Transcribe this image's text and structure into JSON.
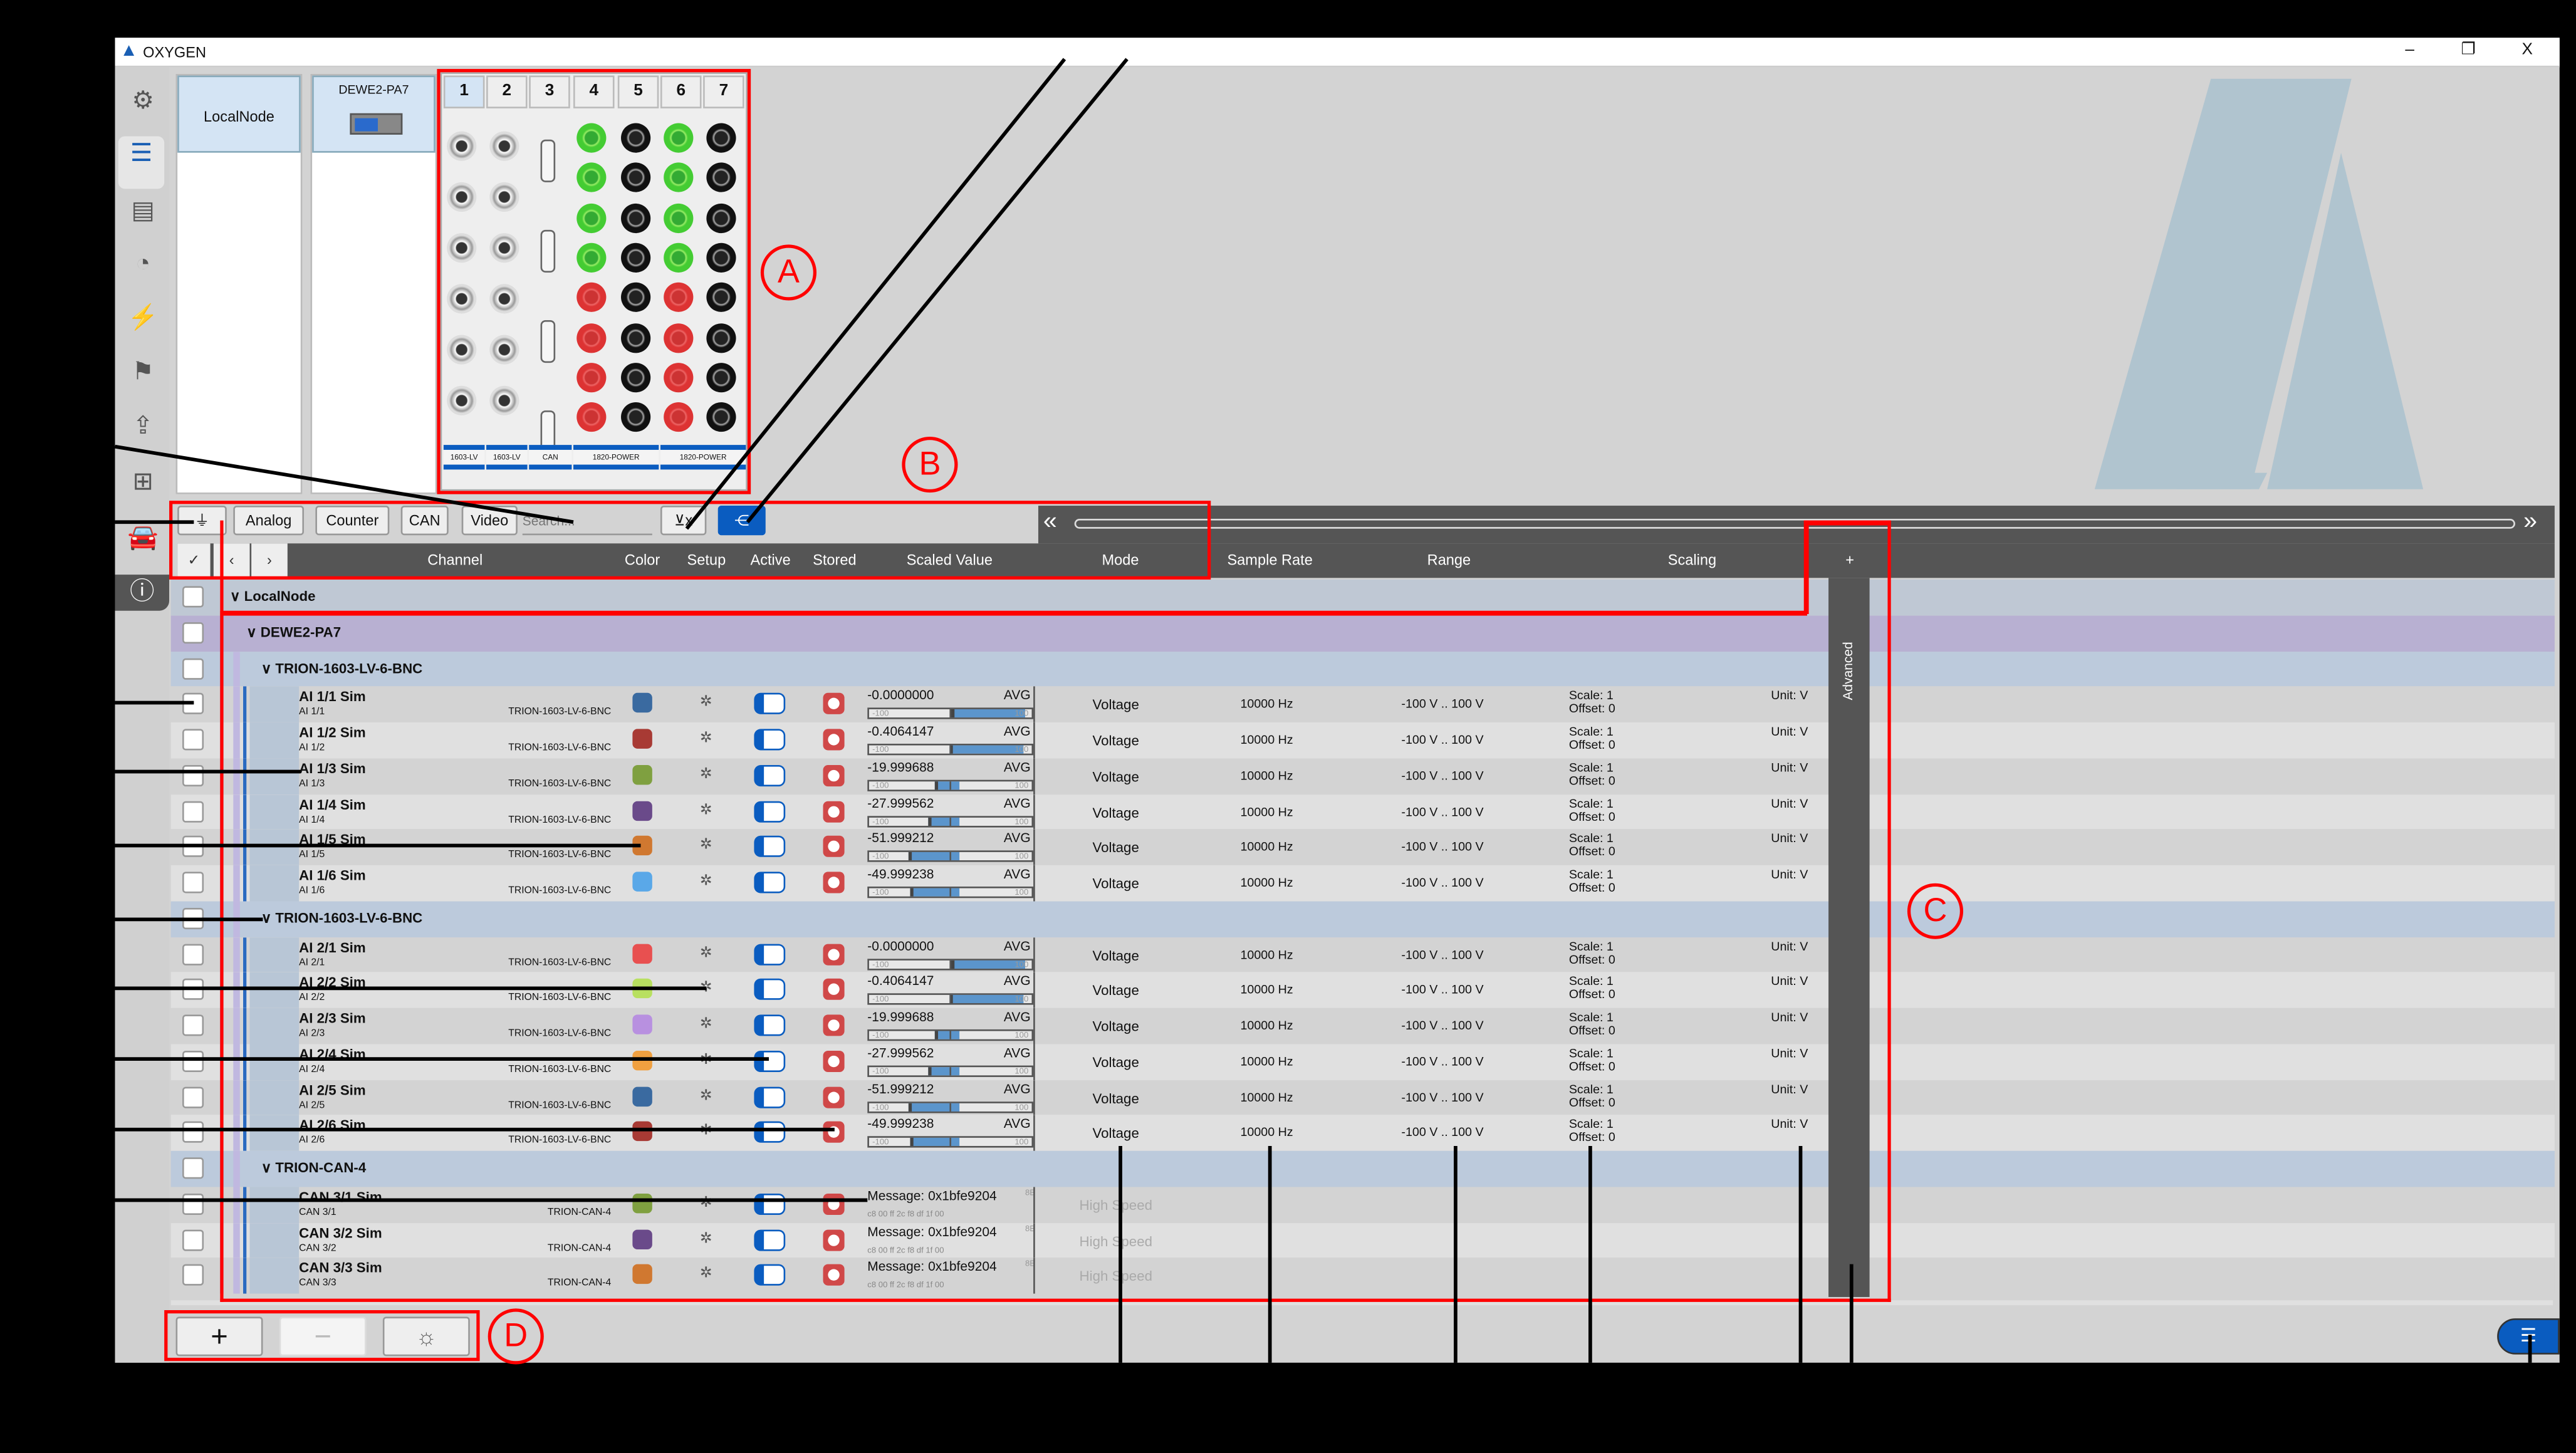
{
  "window": {
    "title": "OXYGEN",
    "controls": [
      "–",
      "❐",
      "X"
    ]
  },
  "sidebar": {
    "icons": [
      "gear-icon",
      "channel-list-icon",
      "report-icon",
      "gauge-icon",
      "lightning-icon",
      "flag-icon",
      "export-icon",
      "network-icon",
      "car-icon",
      "info-icon"
    ]
  },
  "nodes": [
    {
      "label": "LocalNode"
    },
    {
      "label": "DEWE2-PA7"
    }
  ],
  "chassis": {
    "slots": [
      "1",
      "2",
      "3",
      "4",
      "5",
      "6",
      "7"
    ],
    "modules": [
      "1603-LV",
      "1603-LV",
      "CAN",
      "1820-POWER",
      "1820-POWER"
    ]
  },
  "toolbar": {
    "filters": [
      "Analog",
      "Counter",
      "CAN",
      "Video"
    ],
    "search_placeholder": "Search..."
  },
  "columns": {
    "channel": "Channel",
    "color": "Color",
    "setup": "Setup",
    "active": "Active",
    "stored": "Stored",
    "scaled_value": "Scaled Value",
    "mode": "Mode",
    "sample_rate": "Sample Rate",
    "range": "Range",
    "scaling": "Scaling",
    "add": "+",
    "advanced": "Advanced"
  },
  "tree": {
    "root": "LocalNode",
    "device": "DEWE2-PA7"
  },
  "groups": [
    {
      "name": "TRION-1603-LV-6-BNC",
      "channels": [
        {
          "name": "AI 1/1 Sim",
          "sub": "AI 1/1",
          "module": "TRION-1603-LV-6-BNC",
          "color": "#3a6aa0",
          "value": "-0.0000000",
          "value_num": 0,
          "agg": "AVG",
          "min": "-100",
          "max": "100",
          "mode": "Voltage",
          "rate": "10000 Hz",
          "range": "-100 V .. 100 V",
          "scale": "Scale: 1",
          "offset": "Offset: 0",
          "unit": "Unit: V"
        },
        {
          "name": "AI 1/2 Sim",
          "sub": "AI 1/2",
          "module": "TRION-1603-LV-6-BNC",
          "color": "#a83a34",
          "value": "-0.4064147",
          "value_num": -0.4064147,
          "agg": "AVG",
          "min": "-100",
          "max": "100",
          "mode": "Voltage",
          "rate": "10000 Hz",
          "range": "-100 V .. 100 V",
          "scale": "Scale: 1",
          "offset": "Offset: 0",
          "unit": "Unit: V"
        },
        {
          "name": "AI 1/3 Sim",
          "sub": "AI 1/3",
          "module": "TRION-1603-LV-6-BNC",
          "color": "#7fa040",
          "value": "-19.999688",
          "value_num": -19.999688,
          "agg": "AVG",
          "min": "-100",
          "max": "100",
          "mode": "Voltage",
          "rate": "10000 Hz",
          "range": "-100 V .. 100 V",
          "scale": "Scale: 1",
          "offset": "Offset: 0",
          "unit": "Unit: V"
        },
        {
          "name": "AI 1/4 Sim",
          "sub": "AI 1/4",
          "module": "TRION-1603-LV-6-BNC",
          "color": "#6a4a8a",
          "value": "-27.999562",
          "value_num": -27.999562,
          "agg": "AVG",
          "min": "-100",
          "max": "100",
          "mode": "Voltage",
          "rate": "10000 Hz",
          "range": "-100 V .. 100 V",
          "scale": "Scale: 1",
          "offset": "Offset: 0",
          "unit": "Unit: V"
        },
        {
          "name": "AI 1/5 Sim",
          "sub": "AI 1/5",
          "module": "TRION-1603-LV-6-BNC",
          "color": "#d07830",
          "value": "-51.999212",
          "value_num": -51.999212,
          "agg": "AVG",
          "min": "-100",
          "max": "100",
          "mode": "Voltage",
          "rate": "10000 Hz",
          "range": "-100 V .. 100 V",
          "scale": "Scale: 1",
          "offset": "Offset: 0",
          "unit": "Unit: V"
        },
        {
          "name": "AI 1/6 Sim",
          "sub": "AI 1/6",
          "module": "TRION-1603-LV-6-BNC",
          "color": "#5aa8e8",
          "value": "-49.999238",
          "value_num": -49.999238,
          "agg": "AVG",
          "min": "-100",
          "max": "100",
          "mode": "Voltage",
          "rate": "10000 Hz",
          "range": "-100 V .. 100 V",
          "scale": "Scale: 1",
          "offset": "Offset: 0",
          "unit": "Unit: V"
        }
      ]
    },
    {
      "name": "TRION-1603-LV-6-BNC",
      "channels": [
        {
          "name": "AI 2/1 Sim",
          "sub": "AI 2/1",
          "module": "TRION-1603-LV-6-BNC",
          "color": "#e85050",
          "value": "-0.0000000",
          "value_num": 0,
          "agg": "AVG",
          "min": "-100",
          "max": "100",
          "mode": "Voltage",
          "rate": "10000 Hz",
          "range": "-100 V .. 100 V",
          "scale": "Scale: 1",
          "offset": "Offset: 0",
          "unit": "Unit: V"
        },
        {
          "name": "AI 2/2 Sim",
          "sub": "AI 2/2",
          "module": "TRION-1603-LV-6-BNC",
          "color": "#b8e060",
          "value": "-0.4064147",
          "value_num": -0.4064147,
          "agg": "AVG",
          "min": "-100",
          "max": "100",
          "mode": "Voltage",
          "rate": "10000 Hz",
          "range": "-100 V .. 100 V",
          "scale": "Scale: 1",
          "offset": "Offset: 0",
          "unit": "Unit: V"
        },
        {
          "name": "AI 2/3 Sim",
          "sub": "AI 2/3",
          "module": "TRION-1603-LV-6-BNC",
          "color": "#b890e0",
          "value": "-19.999688",
          "value_num": -19.999688,
          "agg": "AVG",
          "min": "-100",
          "max": "100",
          "mode": "Voltage",
          "rate": "10000 Hz",
          "range": "-100 V .. 100 V",
          "scale": "Scale: 1",
          "offset": "Offset: 0",
          "unit": "Unit: V"
        },
        {
          "name": "AI 2/4 Sim",
          "sub": "AI 2/4",
          "module": "TRION-1603-LV-6-BNC",
          "color": "#f0a040",
          "value": "-27.999562",
          "value_num": -27.999562,
          "agg": "AVG",
          "min": "-100",
          "max": "100",
          "mode": "Voltage",
          "rate": "10000 Hz",
          "range": "-100 V .. 100 V",
          "scale": "Scale: 1",
          "offset": "Offset: 0",
          "unit": "Unit: V"
        },
        {
          "name": "AI 2/5 Sim",
          "sub": "AI 2/5",
          "module": "TRION-1603-LV-6-BNC",
          "color": "#3a6aa0",
          "value": "-51.999212",
          "value_num": -51.999212,
          "agg": "AVG",
          "min": "-100",
          "max": "100",
          "mode": "Voltage",
          "rate": "10000 Hz",
          "range": "-100 V .. 100 V",
          "scale": "Scale: 1",
          "offset": "Offset: 0",
          "unit": "Unit: V"
        },
        {
          "name": "AI 2/6 Sim",
          "sub": "AI 2/6",
          "module": "TRION-1603-LV-6-BNC",
          "color": "#a83a34",
          "value": "-49.999238",
          "value_num": -49.999238,
          "agg": "AVG",
          "min": "-100",
          "max": "100",
          "mode": "Voltage",
          "rate": "10000 Hz",
          "range": "-100 V .. 100 V",
          "scale": "Scale: 1",
          "offset": "Offset: 0",
          "unit": "Unit: V"
        }
      ]
    },
    {
      "name": "TRION-CAN-4",
      "channels": [
        {
          "name": "CAN 3/1 Sim",
          "sub": "CAN 3/1",
          "module": "TRION-CAN-4",
          "color": "#7fa040",
          "value": "Message: 0x1bfe9204",
          "bytes": "c8 00 ff 2c f8 df 1f 00",
          "agg": "8B",
          "mode": "High Speed"
        },
        {
          "name": "CAN 3/2 Sim",
          "sub": "CAN 3/2",
          "module": "TRION-CAN-4",
          "color": "#6a4a8a",
          "value": "Message: 0x1bfe9204",
          "bytes": "c8 00 ff 2c f8 df 1f 00",
          "agg": "8B",
          "mode": "High Speed"
        },
        {
          "name": "CAN 3/3 Sim",
          "sub": "CAN 3/3",
          "module": "TRION-CAN-4",
          "color": "#d07830",
          "value": "Message: 0x1bfe9204",
          "bytes": "c8 00 ff 2c f8 df 1f 00",
          "agg": "8B",
          "mode": "High Speed"
        }
      ]
    }
  ],
  "bottom": {
    "add": "+",
    "remove": "−"
  },
  "annotations": {
    "labels": [
      "A",
      "B",
      "C",
      "D"
    ],
    "callouts": [
      "3",
      "4"
    ]
  },
  "colors": {
    "accent": "#0a5cc0",
    "header": "#555555",
    "device_row": "#b8b0d2",
    "module_row": "#bccadc",
    "annotation": "#ff0000"
  }
}
